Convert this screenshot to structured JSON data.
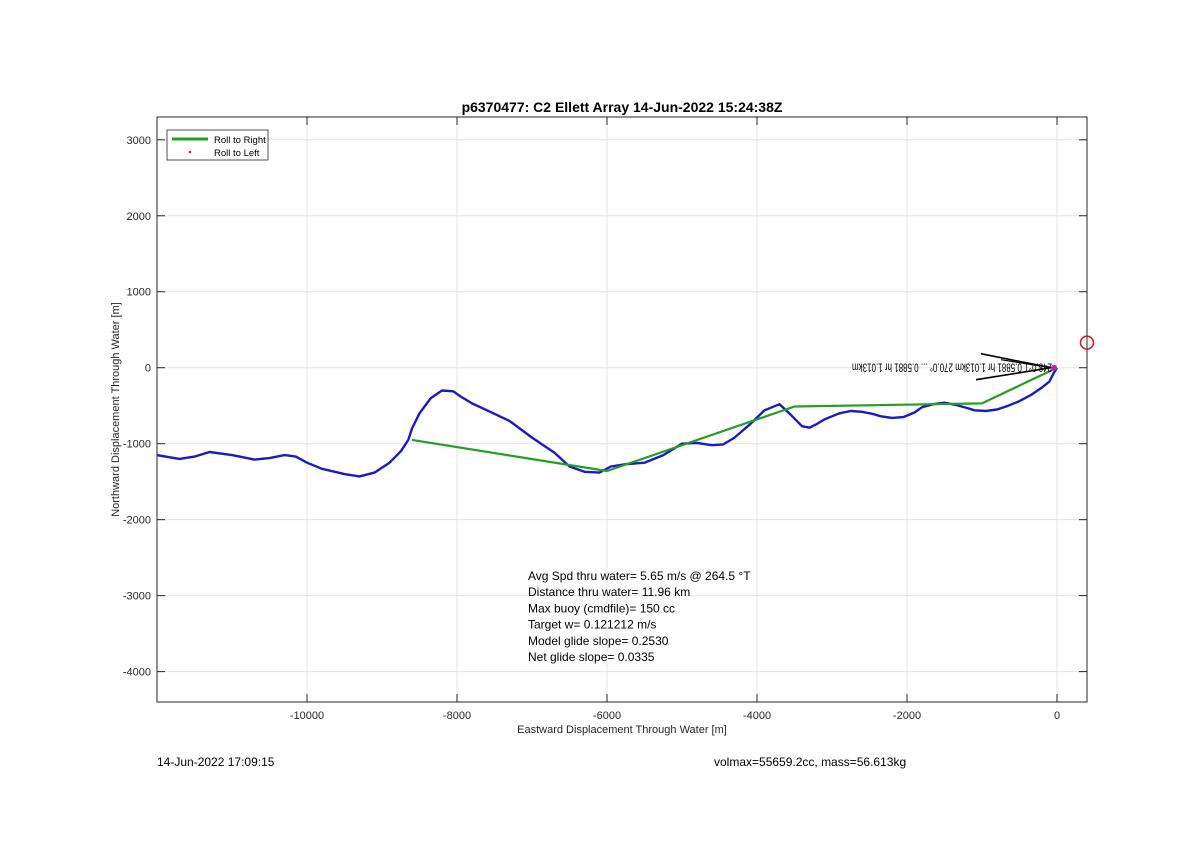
{
  "chart_data": {
    "type": "line",
    "title": "p6370477: C2 Ellett Array 14-Jun-2022 15:24:38Z",
    "xlabel": "Eastward Displacement Through Water [m]",
    "ylabel": "Northward Displacement Through Water [m]",
    "xlim": [
      -12000,
      400
    ],
    "ylim": [
      -4400,
      3300
    ],
    "xticks": [
      -10000,
      -8000,
      -6000,
      -4000,
      -2000,
      0
    ],
    "yticks": [
      -4000,
      -3000,
      -2000,
      -1000,
      0,
      1000,
      2000,
      3000
    ],
    "grid": true,
    "legend": {
      "position": "top-left",
      "entries": [
        {
          "label": "Roll to Right",
          "color": "#22a022",
          "style": "line"
        },
        {
          "label": "Roll to Left",
          "color": "#e01060",
          "style": "dot"
        }
      ]
    },
    "series": [
      {
        "color": "#1a1ac8",
        "x": [
          -12000,
          -11700,
          -11500,
          -11300,
          -11000,
          -10700,
          -10500,
          -10300,
          -10150,
          -10000,
          -9800,
          -9500,
          -9300,
          -9100,
          -8900,
          -8750,
          -8650,
          -8600,
          -8500,
          -8350,
          -8200,
          -8050,
          -7950,
          -7800,
          -7600,
          -7300,
          -7000,
          -6700,
          -6500,
          -6300,
          -6100,
          -5950,
          -5750,
          -5500,
          -5250,
          -5000,
          -4800,
          -4600,
          -4450,
          -4300,
          -4100,
          -3900,
          -3700,
          -3550,
          -3400,
          -3300,
          -3200,
          -3100,
          -3000,
          -2900,
          -2750,
          -2600,
          -2450,
          -2350,
          -2200,
          -2050,
          -1900,
          -1800,
          -1650,
          -1500,
          -1350,
          -1200,
          -1100,
          -950,
          -800,
          -650,
          -500,
          -350,
          -200,
          -100,
          -50,
          0
        ],
        "y": [
          -1150,
          -1200,
          -1170,
          -1110,
          -1150,
          -1210,
          -1190,
          -1150,
          -1170,
          -1250,
          -1330,
          -1400,
          -1430,
          -1380,
          -1250,
          -1100,
          -950,
          -800,
          -600,
          -400,
          -300,
          -310,
          -380,
          -470,
          -560,
          -700,
          -920,
          -1120,
          -1300,
          -1370,
          -1380,
          -1300,
          -1270,
          -1250,
          -1150,
          -1000,
          -990,
          -1020,
          -1010,
          -920,
          -750,
          -560,
          -480,
          -620,
          -770,
          -790,
          -740,
          -680,
          -640,
          -600,
          -570,
          -580,
          -610,
          -640,
          -660,
          -650,
          -590,
          -520,
          -480,
          -460,
          -490,
          -530,
          -560,
          -570,
          -550,
          -500,
          -440,
          -360,
          -260,
          -180,
          -80,
          0
        ]
      },
      {
        "name": "Roll to Right",
        "color": "#22a022",
        "x": [
          -8600,
          -6000,
          -3500,
          -1000,
          0
        ],
        "y": [
          -950,
          -1360,
          -510,
          -470,
          0
        ]
      }
    ],
    "annotations": [
      {
        "text": "Avg Spd thru water=  5.65 m/s @ 264.5 °T"
      },
      {
        "text": "Distance thru water= 11.96 km"
      },
      {
        "text": "Max buoy (cmdfile)= 150 cc"
      },
      {
        "text": "Target w= 0.121212 m/s"
      },
      {
        "text": "Model glide slope= 0.2530"
      },
      {
        "text": "Net glide slope= 0.0335"
      }
    ],
    "vector_label": "248.0°T 0.5881 hr 1.013km 270.0° ... 0.5881 hr 1.013km",
    "circle_marker": {
      "x": 400,
      "y": 330
    }
  },
  "footer": {
    "date": "14-Jun-2022 17:09:15",
    "params": "volmax=55659.2cc, mass=56.613kg"
  }
}
